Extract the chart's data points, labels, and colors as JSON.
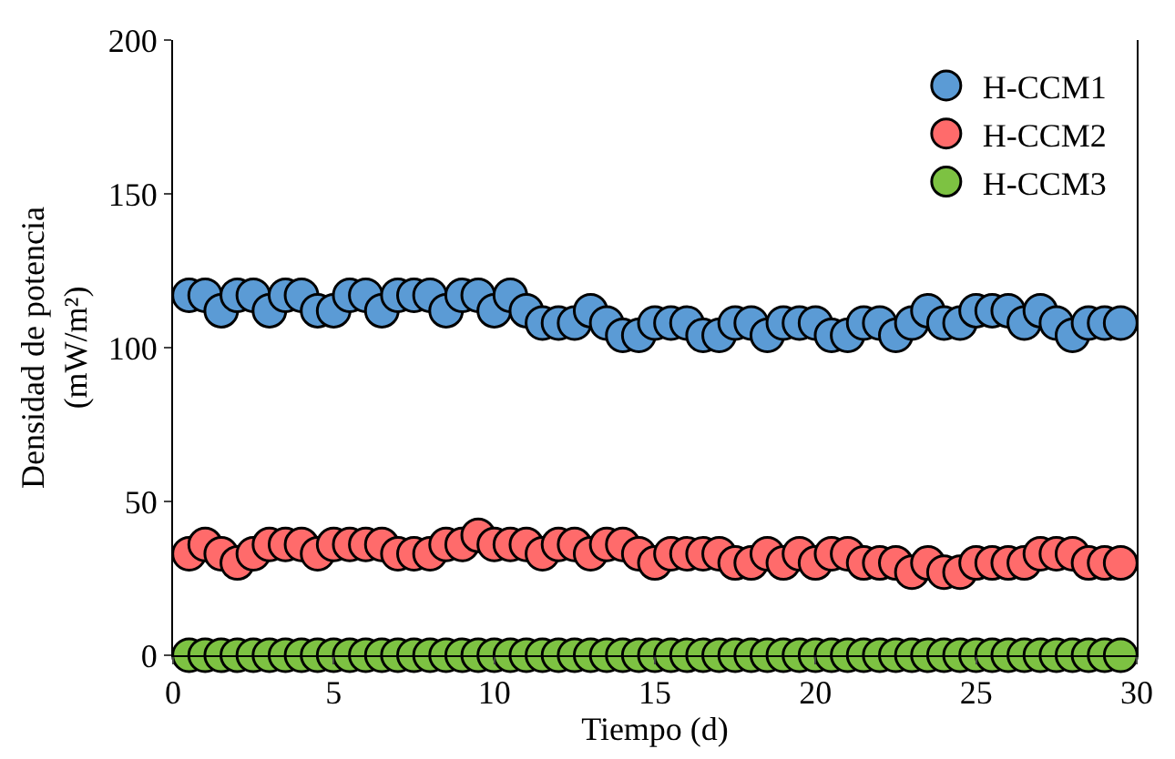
{
  "chart_data": {
    "type": "scatter",
    "xlabel": "Tiempo (d)",
    "ylabel": "Densidad de potencia\n(mW/m²)",
    "x": [
      0.5,
      1,
      1.5,
      2,
      2.5,
      3,
      3.5,
      4,
      4.5,
      5,
      5.5,
      6,
      6.5,
      7,
      7.5,
      8,
      8.5,
      9,
      9.5,
      10,
      10.5,
      11,
      11.5,
      12,
      12.5,
      13,
      13.5,
      14,
      14.5,
      15,
      15.5,
      16,
      16.5,
      17,
      17.5,
      18,
      18.5,
      19,
      19.5,
      20,
      20.5,
      21,
      21.5,
      22,
      22.5,
      23,
      23.5,
      24,
      24.5,
      25,
      25.5,
      26,
      26.5,
      27,
      27.5,
      28,
      28.5,
      29,
      29.5
    ],
    "series": [
      {
        "name": "H-CCM1",
        "color": "#5b9bd5",
        "values": [
          117,
          117,
          112,
          117,
          117,
          112,
          117,
          117,
          112,
          112,
          117,
          117,
          112,
          117,
          117,
          117,
          112,
          117,
          117,
          112,
          117,
          112,
          108,
          108,
          108,
          112,
          108,
          104,
          104,
          108,
          108,
          108,
          104,
          104,
          108,
          108,
          104,
          108,
          108,
          108,
          104,
          104,
          108,
          108,
          104,
          108,
          112,
          108,
          108,
          112,
          112,
          112,
          108,
          112,
          108,
          104,
          108,
          108,
          108
        ]
      },
      {
        "name": "H-CCM2",
        "color": "#ff6b6b",
        "values": [
          33,
          36,
          33,
          30,
          33,
          36,
          36,
          36,
          33,
          36,
          36,
          36,
          36,
          33,
          33,
          33,
          36,
          36,
          39,
          36,
          36,
          36,
          33,
          36,
          36,
          33,
          36,
          36,
          33,
          30,
          33,
          33,
          33,
          33,
          30,
          30,
          33,
          30,
          33,
          30,
          33,
          33,
          30,
          30,
          30,
          27,
          30,
          27,
          27,
          30,
          30,
          30,
          30,
          33,
          33,
          33,
          30,
          30,
          30
        ]
      },
      {
        "name": "H-CCM3",
        "color": "#7dc242",
        "values": [
          0,
          0,
          0,
          0,
          0,
          0,
          0,
          0,
          0,
          0,
          0,
          0,
          0,
          0,
          0,
          0,
          0,
          0,
          0,
          0,
          0,
          0,
          0,
          0,
          0,
          0,
          0,
          0,
          0,
          0,
          0,
          0,
          0,
          0,
          0,
          0,
          0,
          0,
          0,
          0,
          0,
          0,
          0,
          0,
          0,
          0,
          0,
          0,
          0,
          0,
          0,
          0,
          0,
          0,
          0,
          0,
          0,
          0,
          0
        ]
      }
    ],
    "xlim": [
      0,
      30
    ],
    "xticks": [
      0,
      5,
      10,
      15,
      20,
      25,
      30
    ],
    "ylim": [
      0,
      200
    ],
    "yticks": [
      0,
      50,
      100,
      150,
      200
    ],
    "grid": false,
    "legend": "top right",
    "marker": "circle"
  }
}
